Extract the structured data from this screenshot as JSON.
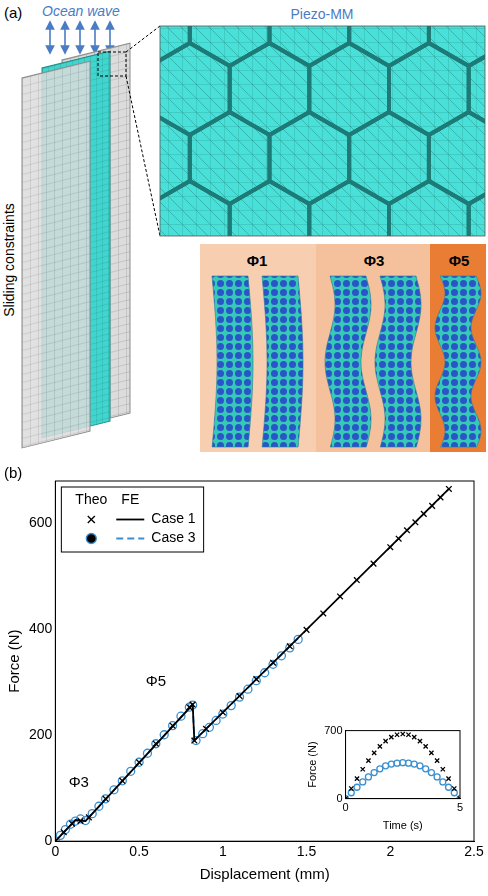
{
  "diagram": {
    "panel_label": "(a)",
    "load_label": "Ocean wave",
    "side_label": "Sliding constraints",
    "zoom_label": "Piezo-MM",
    "mode_labels": [
      "Φ1",
      "Φ3",
      "Φ5"
    ]
  },
  "chart_data": [
    {
      "panel_label": "(b)",
      "type": "scatter",
      "x_label": "Displacement (mm)",
      "y_label": "Force (N)",
      "xlim": [
        0,
        2.5
      ],
      "ylim": [
        0,
        680
      ],
      "xticks": [
        0,
        0.5,
        1,
        1.5,
        2,
        2.5
      ],
      "yticks": [
        0,
        200,
        400,
        600
      ],
      "grid": false,
      "legend": "upper left",
      "annotations": [
        {
          "text": "Φ3",
          "x": 0.14,
          "y": 110
        },
        {
          "text": "Φ5",
          "x": 0.6,
          "y": 300
        }
      ],
      "series": [
        {
          "name": "Case 1",
          "group": "Theo",
          "type": "scatter",
          "marker": "x",
          "color": "#000000",
          "x": [
            0,
            0.05,
            0.1,
            0.15,
            0.2,
            0.3,
            0.4,
            0.5,
            0.6,
            0.7,
            0.8,
            0.82,
            0.83,
            0.9,
            1.0,
            1.1,
            1.2,
            1.3,
            1.4,
            1.5,
            1.6,
            1.7,
            1.8,
            1.9,
            2.0,
            2.05,
            2.1,
            2.15,
            2.2,
            2.25,
            2.3,
            2.35
          ],
          "values": [
            0,
            17,
            33,
            38,
            45,
            80,
            114,
            149,
            184,
            218,
            253,
            258,
            190,
            212,
            243,
            274,
            306,
            337,
            368,
            399,
            430,
            462,
            493,
            524,
            555,
            571,
            587,
            602,
            618,
            633,
            649,
            665
          ]
        },
        {
          "name": "Case 1",
          "group": "FE",
          "type": "line",
          "line_style": "solid",
          "color": "#000000",
          "x": [
            0,
            0.12,
            0.18,
            0.82,
            0.83,
            2.35
          ],
          "values": [
            0,
            40,
            38,
            258,
            190,
            665
          ]
        },
        {
          "name": "Case 3",
          "group": "Theo",
          "type": "scatter",
          "marker": "circle",
          "color": "#3a8fd0",
          "x": [
            0,
            0.03,
            0.06,
            0.09,
            0.12,
            0.15,
            0.18,
            0.22,
            0.26,
            0.3,
            0.35,
            0.4,
            0.45,
            0.5,
            0.55,
            0.6,
            0.65,
            0.7,
            0.75,
            0.8,
            0.82,
            0.84,
            0.88,
            0.92,
            0.96,
            1.0,
            1.05,
            1.1,
            1.15,
            1.2,
            1.25,
            1.3,
            1.35,
            1.4,
            1.45
          ],
          "values": [
            0,
            11,
            22,
            32,
            38,
            42,
            39,
            52,
            66,
            80,
            97,
            114,
            132,
            149,
            166,
            184,
            201,
            218,
            236,
            253,
            257,
            190,
            203,
            215,
            228,
            240,
            256,
            272,
            287,
            303,
            318,
            334,
            350,
            365,
            381
          ]
        },
        {
          "name": "Case 3",
          "group": "FE",
          "type": "line",
          "line_style": "dashed",
          "color": "#3a8fd0",
          "x": [
            0,
            0.12,
            0.18,
            0.82,
            0.83,
            1.45
          ],
          "values": [
            0,
            40,
            38,
            258,
            190,
            383
          ]
        }
      ]
    },
    {
      "type": "scatter",
      "x_label": "Time (s)",
      "y_label": "Force (N)",
      "xlim": [
        0,
        5
      ],
      "ylim": [
        0,
        700
      ],
      "xticks": [
        0,
        5
      ],
      "yticks": [
        0,
        700
      ],
      "grid": false,
      "series": [
        {
          "marker": "x",
          "color": "#000000",
          "x": [
            0,
            0.25,
            0.5,
            0.75,
            1,
            1.25,
            1.5,
            1.75,
            2,
            2.25,
            2.5,
            2.75,
            3,
            3.25,
            3.5,
            3.75,
            4,
            4.25,
            4.5,
            4.75,
            5
          ],
          "values": [
            0,
            104,
            205,
            302,
            391,
            470,
            538,
            592,
            632,
            657,
            665,
            657,
            632,
            592,
            538,
            470,
            391,
            302,
            205,
            104,
            0
          ]
        },
        {
          "marker": "circle",
          "color": "#3a8fd0",
          "x": [
            0,
            0.25,
            0.5,
            0.75,
            1,
            1.25,
            1.5,
            1.75,
            2,
            2.25,
            2.5,
            2.75,
            3,
            3.25,
            3.5,
            3.75,
            4,
            4.25,
            4.5,
            4.75,
            5
          ],
          "values": [
            0,
            60,
            117,
            172,
            223,
            268,
            307,
            337,
            355,
            365,
            370,
            365,
            355,
            337,
            307,
            268,
            223,
            172,
            117,
            60,
            0
          ]
        }
      ]
    }
  ]
}
